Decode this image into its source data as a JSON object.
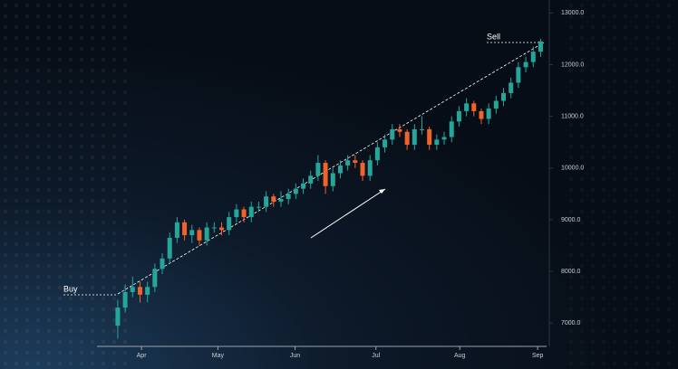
{
  "chart_data": {
    "type": "candlestick",
    "annotations": [
      "Buy",
      "Sell"
    ],
    "up_color": "#26a69a",
    "down_color": "#f0632a",
    "xlim": [
      -2.8,
      57.8
    ],
    "xticks": [
      {
        "value": 3.2,
        "label": "Apr"
      },
      {
        "value": 13.5,
        "label": "May"
      },
      {
        "value": 23.9,
        "label": "Jun"
      },
      {
        "value": 34.8,
        "label": "Jul"
      },
      {
        "value": 46.1,
        "label": "Aug"
      },
      {
        "value": 56.6,
        "label": "Sep"
      }
    ],
    "ylim": [
      6550,
      13250
    ],
    "yticks": [
      {
        "value": 7000,
        "label": "7000.0"
      },
      {
        "value": 8000,
        "label": "8000.0"
      },
      {
        "value": 9000,
        "label": "9000.0"
      },
      {
        "value": 10000,
        "label": "10000.0"
      },
      {
        "value": 11000,
        "label": "11000.0"
      },
      {
        "value": 12000,
        "label": "12000.0"
      },
      {
        "value": 13000,
        "label": "13000.0"
      }
    ],
    "open": [
      6950,
      7300,
      7600,
      7700,
      7550,
      7700,
      8050,
      8250,
      8650,
      8950,
      8700,
      8800,
      8600,
      8850,
      8850,
      8800,
      9050,
      9200,
      9050,
      9250,
      9250,
      9450,
      9350,
      9400,
      9500,
      9600,
      9700,
      9850,
      10100,
      9650,
      9900,
      10050,
      10150,
      10100,
      9850,
      10150,
      10400,
      10550,
      10750,
      10700,
      10450,
      10750,
      10750,
      10450,
      10550,
      10600,
      10900,
      11100,
      11250,
      11100,
      10950,
      11150,
      11300,
      11450,
      11650,
      11950,
      12050,
      12250
    ],
    "high": [
      7450,
      7750,
      7900,
      7800,
      7800,
      8150,
      8350,
      8750,
      9050,
      9000,
      8900,
      8850,
      8950,
      8950,
      8950,
      9150,
      9300,
      9250,
      9350,
      9350,
      9550,
      9500,
      9550,
      9600,
      9700,
      9800,
      9950,
      10250,
      10150,
      10000,
      10150,
      10250,
      10250,
      10150,
      10250,
      10500,
      10650,
      10850,
      10850,
      10750,
      10850,
      11000,
      10800,
      10650,
      10700,
      11000,
      11200,
      11350,
      11300,
      11150,
      11250,
      11400,
      11550,
      11750,
      12050,
      12150,
      12350,
      12500
    ],
    "low": [
      6700,
      7200,
      7500,
      7400,
      7400,
      7600,
      7950,
      8150,
      8550,
      8600,
      8550,
      8500,
      8500,
      8750,
      8700,
      8700,
      8950,
      8950,
      8950,
      9150,
      9150,
      9250,
      9250,
      9300,
      9400,
      9500,
      9600,
      9750,
      9500,
      9550,
      9800,
      9950,
      10000,
      9750,
      9750,
      10050,
      10300,
      10450,
      10600,
      10350,
      10350,
      10650,
      10350,
      10350,
      10450,
      10500,
      10800,
      11000,
      11000,
      10850,
      10850,
      11050,
      11200,
      11350,
      11550,
      11850,
      11950,
      12150
    ],
    "close": [
      7300,
      7600,
      7700,
      7550,
      7700,
      8050,
      8250,
      8650,
      8950,
      8700,
      8800,
      8600,
      8850,
      8850,
      8800,
      9050,
      9200,
      9050,
      9250,
      9250,
      9450,
      9350,
      9400,
      9500,
      9600,
      9700,
      9850,
      10100,
      9650,
      9900,
      10050,
      10150,
      10100,
      9850,
      10150,
      10400,
      10550,
      10750,
      10700,
      10450,
      10750,
      10750,
      10450,
      10550,
      10600,
      10900,
      11100,
      11250,
      11100,
      10950,
      11150,
      11300,
      11450,
      11650,
      11950,
      12050,
      12250,
      12450
    ]
  }
}
